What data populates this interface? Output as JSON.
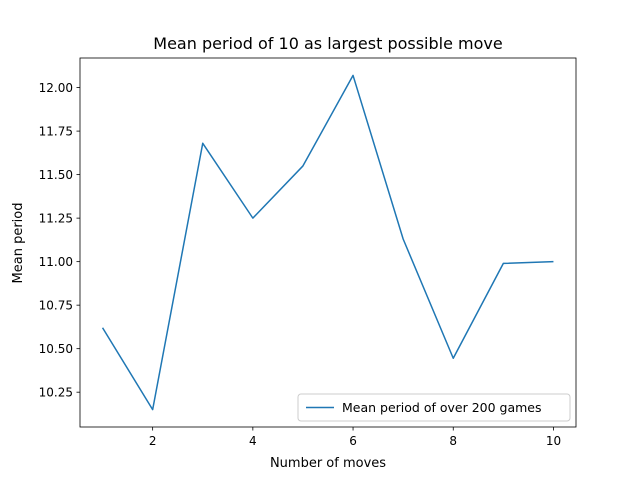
{
  "chart_data": {
    "type": "line",
    "title": "Mean period of 10 as largest possible move",
    "xlabel": "Number of moves",
    "ylabel": "Mean period",
    "xlim": [
      0.55,
      10.45
    ],
    "ylim": [
      10.05,
      12.17
    ],
    "xticks": [
      2,
      4,
      6,
      8,
      10
    ],
    "xtick_labels": [
      "2",
      "4",
      "6",
      "8",
      "10"
    ],
    "yticks": [
      10.25,
      10.5,
      10.75,
      11.0,
      11.25,
      11.5,
      11.75,
      12.0
    ],
    "ytick_labels": [
      "10.25",
      "10.50",
      "10.75",
      "11.00",
      "11.25",
      "11.50",
      "11.75",
      "12.00"
    ],
    "grid": false,
    "legend_position": "lower-right",
    "series": [
      {
        "name": "Mean period of over 200 games",
        "color": "#1f77b4",
        "x": [
          1,
          2,
          3,
          4,
          5,
          6,
          7,
          8,
          9,
          10
        ],
        "y": [
          10.62,
          10.15,
          11.68,
          11.25,
          11.55,
          12.07,
          11.13,
          10.445,
          10.99,
          11.0
        ]
      }
    ]
  }
}
